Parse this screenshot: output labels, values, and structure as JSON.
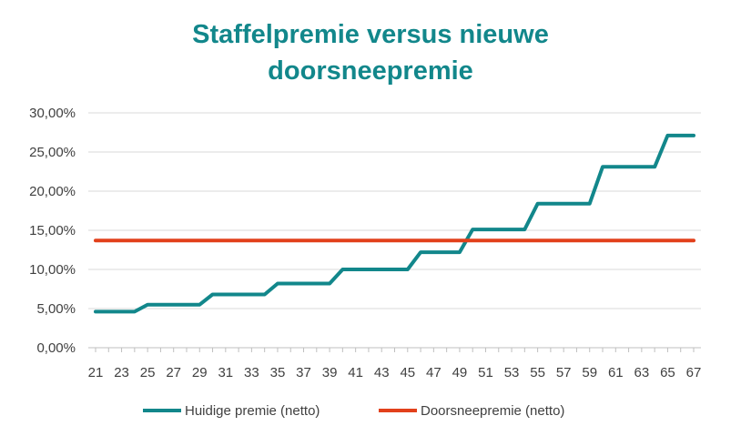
{
  "chart_data": {
    "type": "line",
    "title_lines": [
      "Staffelpremie versus nieuwe",
      "doorsneepremie"
    ],
    "xlabel": "",
    "ylabel": "",
    "ylim": [
      0,
      30
    ],
    "y_ticks": [
      "0,00%",
      "5,00%",
      "10,00%",
      "15,00%",
      "20,00%",
      "25,00%",
      "30,00%"
    ],
    "y_tick_values": [
      0,
      5,
      10,
      15,
      20,
      25,
      30
    ],
    "x": [
      21,
      22,
      23,
      24,
      25,
      26,
      27,
      28,
      29,
      30,
      31,
      32,
      33,
      34,
      35,
      36,
      37,
      38,
      39,
      40,
      41,
      42,
      43,
      44,
      45,
      46,
      47,
      48,
      49,
      50,
      51,
      52,
      53,
      54,
      55,
      56,
      57,
      58,
      59,
      60,
      61,
      62,
      63,
      64,
      65,
      66,
      67
    ],
    "x_tick_labels": [
      "21",
      "23",
      "25",
      "27",
      "29",
      "31",
      "33",
      "35",
      "37",
      "39",
      "41",
      "43",
      "45",
      "47",
      "49",
      "51",
      "53",
      "55",
      "57",
      "59",
      "61",
      "63",
      "65",
      "67"
    ],
    "grid": true,
    "legend_position": "bottom",
    "series": [
      {
        "name": "Huidige premie (netto)",
        "color": "#12878b",
        "values": [
          4.6,
          4.6,
          4.6,
          4.6,
          5.5,
          5.5,
          5.5,
          5.5,
          5.5,
          6.8,
          6.8,
          6.8,
          6.8,
          6.8,
          8.2,
          8.2,
          8.2,
          8.2,
          8.2,
          10.0,
          10.0,
          10.0,
          10.0,
          10.0,
          10.0,
          12.2,
          12.2,
          12.2,
          12.2,
          15.1,
          15.1,
          15.1,
          15.1,
          15.1,
          18.4,
          18.4,
          18.4,
          18.4,
          18.4,
          23.1,
          23.1,
          23.1,
          23.1,
          23.1,
          27.1,
          27.1,
          27.1
        ]
      },
      {
        "name": "Doorsneepremie (netto)",
        "color": "#e2401b",
        "values": [
          13.7,
          13.7,
          13.7,
          13.7,
          13.7,
          13.7,
          13.7,
          13.7,
          13.7,
          13.7,
          13.7,
          13.7,
          13.7,
          13.7,
          13.7,
          13.7,
          13.7,
          13.7,
          13.7,
          13.7,
          13.7,
          13.7,
          13.7,
          13.7,
          13.7,
          13.7,
          13.7,
          13.7,
          13.7,
          13.7,
          13.7,
          13.7,
          13.7,
          13.7,
          13.7,
          13.7,
          13.7,
          13.7,
          13.7,
          13.7,
          13.7,
          13.7,
          13.7,
          13.7,
          13.7,
          13.7,
          13.7
        ]
      }
    ],
    "colors": {
      "title": "#12878b",
      "grid": "#d9d9d9",
      "axis": "#bfbfbf",
      "text": "#404040"
    }
  }
}
